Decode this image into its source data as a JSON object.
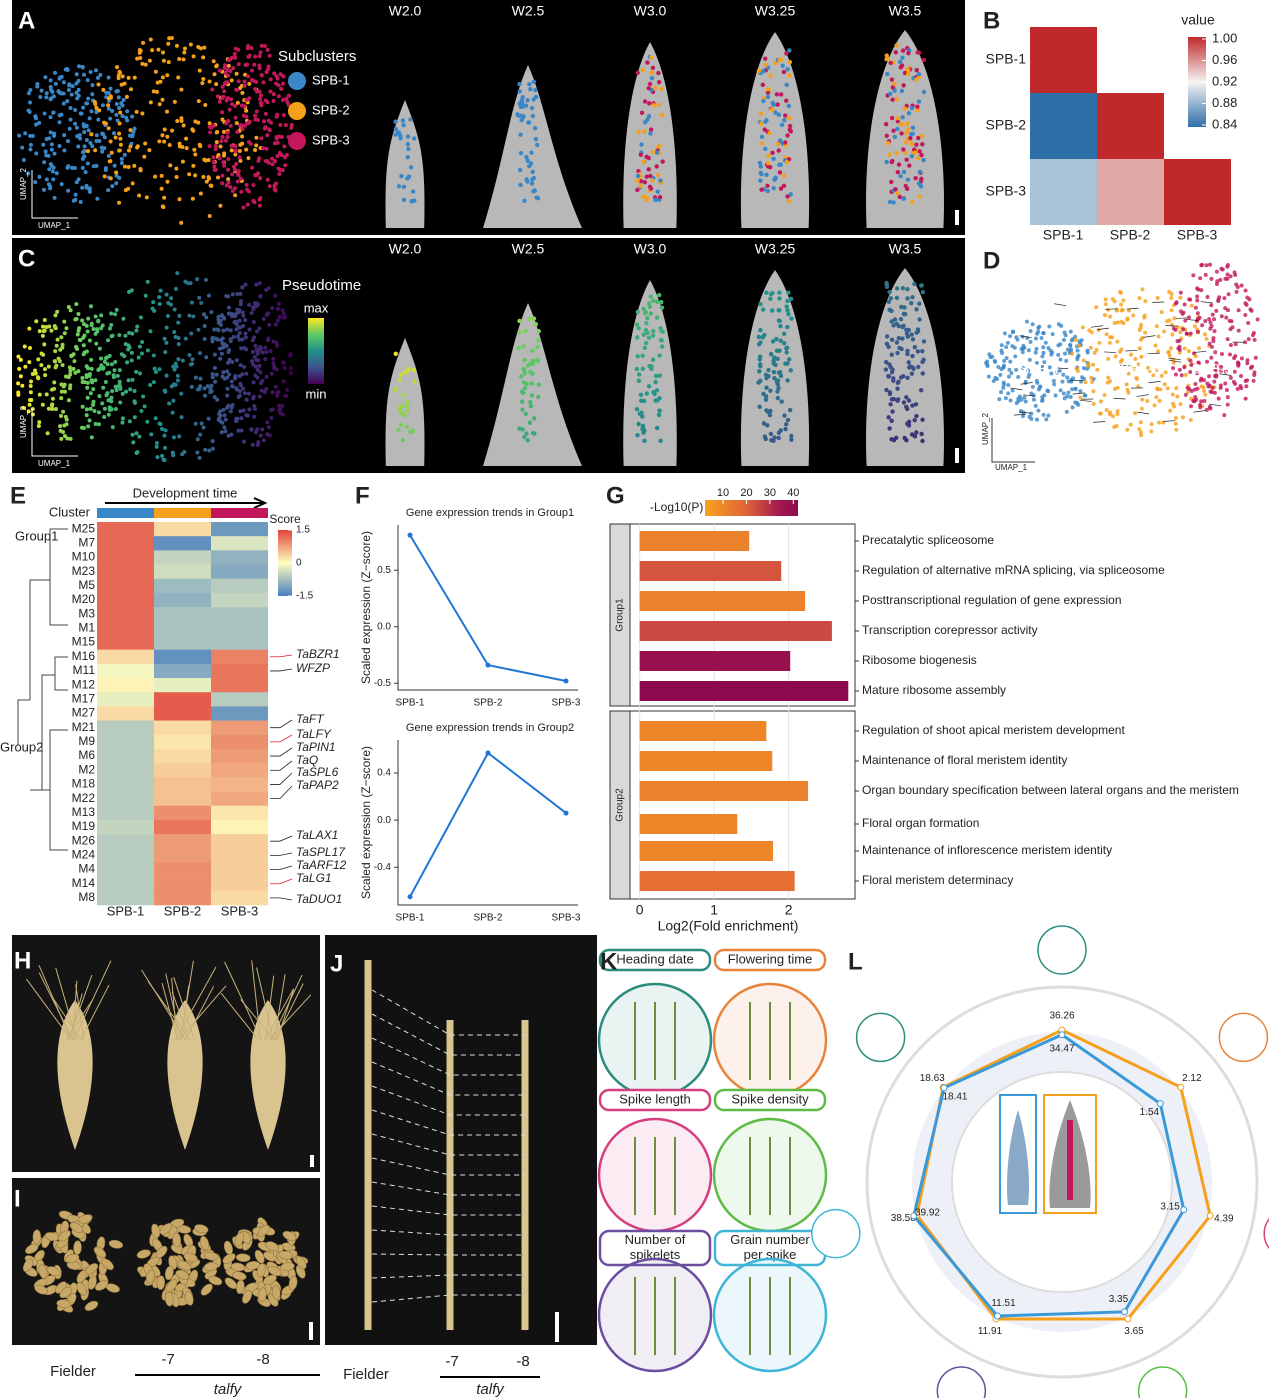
{
  "panels": {
    "A": {
      "label": "A",
      "legend_title": "Subclusters",
      "legend": [
        {
          "name": "SPB-1",
          "color": "#3a87c8"
        },
        {
          "name": "SPB-2",
          "color": "#f5a01a"
        },
        {
          "name": "SPB-3",
          "color": "#c2185b"
        }
      ],
      "stages": [
        "W2.0",
        "W2.5",
        "W3.0",
        "W3.25",
        "W3.5"
      ],
      "umap_y": "UMAP_2",
      "umap_x": "UMAP_1"
    },
    "B": {
      "label": "B",
      "type": "heatmap",
      "rows": [
        "SPB-1",
        "SPB-2",
        "SPB-3"
      ],
      "cols": [
        "SPB-1",
        "SPB-2",
        "SPB-3"
      ],
      "values": [
        [
          1,
          null,
          null
        ],
        [
          0.84,
          1,
          null
        ],
        [
          0.89,
          0.95,
          1
        ]
      ],
      "legend_title": "value",
      "clim": [
        0.84,
        1
      ],
      "ticks": [
        {
          "value": 1,
          "label": "1.00"
        },
        0.96,
        0.92,
        0.88,
        0.84
      ]
    },
    "C": {
      "label": "C",
      "legend_title": "Pseudotime",
      "max": "max",
      "min": "min",
      "stages": [
        "W2.0",
        "W2.5",
        "W3.0",
        "W3.25",
        "W3.5"
      ],
      "umap_y": "UMAP_2",
      "umap_x": "UMAP_1"
    },
    "D": {
      "label": "D",
      "clusters": [
        "SPB-1",
        "SPB-2",
        "SPB-3"
      ],
      "umap_y": "UMAP_2",
      "umap_x": "UMAP_1"
    },
    "E": {
      "label": "E",
      "type": "heatmap",
      "arrow_text": "Development time",
      "cluster_text": "Cluster",
      "legend_title": "Score",
      "clim": [
        -1.5,
        1.5
      ],
      "ticks": [
        1.5,
        0,
        -1.5
      ],
      "groups": [
        "Group1",
        "Group2"
      ],
      "cols": [
        "SPB-1",
        "SPB-2",
        "SPB-3"
      ],
      "rows": [
        "M25",
        "M7",
        "M10",
        "M23",
        "M5",
        "M20",
        "M3",
        "M1",
        "M15",
        "M16",
        "M11",
        "M12",
        "M17",
        "M27",
        "M21",
        "M9",
        "M6",
        "M2",
        "M18",
        "M22",
        "M13",
        "M19",
        "M26",
        "M24",
        "M4",
        "M14",
        "M8"
      ],
      "values": [
        [
          1.2,
          0.3,
          -1.2
        ],
        [
          1.2,
          -1.3,
          -0.3
        ],
        [
          1.2,
          -0.5,
          -0.9
        ],
        [
          1.2,
          -0.4,
          -1.0
        ],
        [
          1.2,
          -0.8,
          -0.6
        ],
        [
          1.2,
          -0.9,
          -0.5
        ],
        [
          1.2,
          -0.7,
          -0.7
        ],
        [
          1.2,
          -0.7,
          -0.7
        ],
        [
          1.2,
          -0.7,
          -0.7
        ],
        [
          0.3,
          -1.3,
          1.0
        ],
        [
          -0.1,
          -1.0,
          1.1
        ],
        [
          0.1,
          -0.2,
          1.1
        ],
        [
          -0.2,
          1.3,
          -0.6
        ],
        [
          0.3,
          1.3,
          -1.2
        ],
        [
          -0.6,
          0.3,
          0.8
        ],
        [
          -0.6,
          0.2,
          0.9
        ],
        [
          -0.6,
          0.3,
          0.8
        ],
        [
          -0.6,
          0.4,
          0.7
        ],
        [
          -0.6,
          0.5,
          0.6
        ],
        [
          -0.6,
          0.5,
          0.7
        ],
        [
          -0.6,
          0.9,
          0.2
        ],
        [
          -0.5,
          1.1,
          0.1
        ],
        [
          -0.6,
          0.8,
          0.4
        ],
        [
          -0.6,
          0.8,
          0.4
        ],
        [
          -0.6,
          0.9,
          0.4
        ],
        [
          -0.6,
          0.9,
          0.4
        ],
        [
          -0.6,
          0.9,
          0.3
        ]
      ],
      "genes": [
        {
          "name": "TaBZR1",
          "color": "#e02020"
        },
        {
          "name": "WFZP",
          "color": "#222222"
        },
        {
          "name": "TaFT",
          "color": "#222222"
        },
        {
          "name": "TaLFY",
          "color": "#e02020"
        },
        {
          "name": "TaPIN1",
          "color": "#222222"
        },
        {
          "name": "TaQ",
          "color": "#222222"
        },
        {
          "name": "TaSPL6",
          "color": "#222222"
        },
        {
          "name": "TaPAP2",
          "color": "#222222"
        },
        {
          "name": "TaLAX1",
          "color": "#222222"
        },
        {
          "name": "TaSPL17",
          "color": "#222222"
        },
        {
          "name": "TaARF12",
          "color": "#222222"
        },
        {
          "name": "TaLG1",
          "color": "#e02020"
        },
        {
          "name": "TaDUO1",
          "color": "#222222"
        }
      ]
    },
    "F": {
      "label": "F",
      "charts": [
        {
          "type": "line",
          "title": "Gene expression trends in Group1",
          "ylabel": "Scaled expression (Z−score)",
          "categories": [
            "SPB-1",
            "SPB-2",
            "SPB-3"
          ],
          "values": [
            0.81,
            -0.34,
            -0.48
          ],
          "color": "#1f77d4",
          "ylim": [
            -0.56,
            0.9
          ],
          "yticks": [
            -0.5,
            {
              "value": 0,
              "label": "0.0"
            },
            0.5
          ]
        },
        {
          "type": "line",
          "title": "Gene expression trends in Group2",
          "ylabel": "Scaled expression (Z−score)",
          "categories": [
            "SPB-1",
            "SPB-2",
            "SPB-3"
          ],
          "values": [
            -0.65,
            0.57,
            0.06
          ],
          "color": "#1f77d4",
          "ylim": [
            -0.72,
            0.68
          ],
          "yticks": [
            -0.4,
            {
              "value": 0,
              "label": "0.0"
            },
            0.4
          ]
        }
      ]
    },
    "G": {
      "label": "G",
      "type": "bar",
      "legend_title": "-Log10(P)",
      "clim": [
        2.3,
        42
      ],
      "cticks": [
        10,
        20,
        30,
        40
      ],
      "xlabel": "Log2(Fold enrichment)",
      "xlim": [
        -0.13,
        2.89
      ],
      "xticks": [
        0,
        1,
        2
      ],
      "grid": true,
      "groups": [
        {
          "name": "Group1",
          "count": 6
        },
        {
          "name": "Group2",
          "count": 6
        }
      ],
      "categories": [
        "Precatalytic spliceosome",
        "Regulation of alternative mRNA splicing, via spliceosome",
        "Posttranscriptional regulation of gene expression",
        "Transcription corepressor activity",
        "Ribosome biogenesis",
        "Mature ribosome assembly",
        "Regulation of shoot apical meristem development",
        "Maintenance of floral meristem identity",
        "Organ boundary specification between lateral organs and the meristem",
        "Floral organ formation",
        "Maintenance of inflorescence meristem identity",
        "Floral meristem determinacy"
      ],
      "values": [
        1.47,
        1.9,
        2.22,
        2.58,
        2.02,
        2.8,
        1.7,
        1.78,
        2.26,
        1.31,
        1.79,
        2.08
      ],
      "pvalues": [
        9,
        18,
        9,
        20,
        36,
        42,
        8,
        8,
        9,
        8,
        8,
        13
      ]
    },
    "H": {
      "label": "H"
    },
    "I": {
      "label": "I",
      "genotypes": [
        "Fielder",
        "-7",
        "-8"
      ],
      "mutant": "talfy"
    },
    "J": {
      "label": "J",
      "genotypes": [
        "Fielder",
        "-7",
        "-8"
      ],
      "mutant": "talfy"
    },
    "K": {
      "label": "K",
      "traits": [
        {
          "lines": [
            "Heading date"
          ],
          "color": "#2a8c7e"
        },
        {
          "lines": [
            "Flowering time"
          ],
          "color": "#e8843a"
        },
        {
          "lines": [
            "Spike length"
          ],
          "color": "#d63f7f"
        },
        {
          "lines": [
            "Spike density"
          ],
          "color": "#5dbb46"
        },
        {
          "lines": [
            "Number of",
            "spikelets"
          ],
          "color": "#6b4ea0"
        },
        {
          "lines": [
            "Grain number",
            "per spike"
          ],
          "color": "#3fb5d6"
        }
      ]
    },
    "L": {
      "label": "L",
      "type": "radar",
      "series": [
        {
          "color": "#f5a01a",
          "values": [
            36.26,
            2.12,
            4.39,
            3.65,
            11.91,
            38.58,
            18.63
          ]
        },
        {
          "color": "#3a9ad9",
          "values": [
            34.47,
            1.54,
            3.15,
            3.35,
            11.51,
            39.92,
            18.41
          ]
        }
      ]
    }
  }
}
